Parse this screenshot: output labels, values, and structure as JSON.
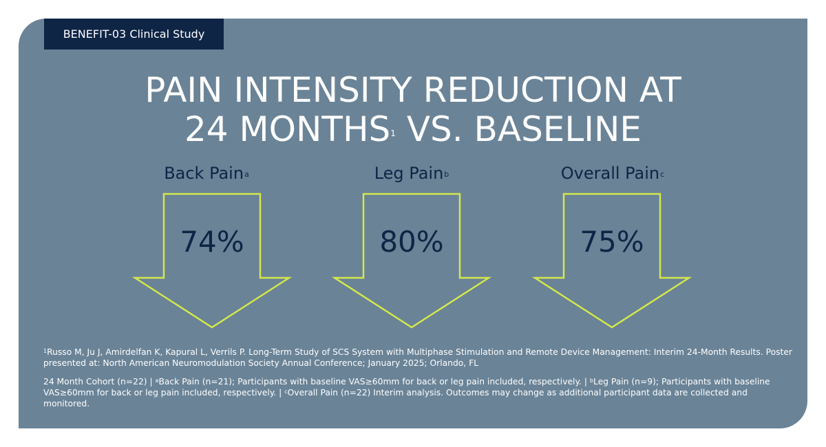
{
  "tag": "BENEFIT-03 Clinical Study",
  "title": {
    "line1": "PAIN INTENSITY REDUCTION AT",
    "line2_part1": "24 MONTHS",
    "line2_sup": "1",
    "line2_part2": " VS. BASELINE"
  },
  "metrics": [
    {
      "label": "Back Pain",
      "sup": "a",
      "value": "74%"
    },
    {
      "label": "Leg Pain",
      "sup": "b",
      "value": "80%"
    },
    {
      "label": "Overall Pain",
      "sup": "c",
      "value": "75%"
    }
  ],
  "footnotes": {
    "ref_sup": "1",
    "ref_text": "Russo M, Ju J, Amirdelfan K, Kapural L, Verrils P. Long-Term Study of SCS System with Multiphase Stimulation and Remote Device Management: Interim 24-Month Results. Poster presented at: North American Neuromodulation Society Annual Conference; January 2025; Orlando, FL",
    "cohort_text": "24 Month Cohort (n=22) | ",
    "a_sup": "a",
    "a_text": "Back Pain (n=21); Participants with baseline VAS≥60mm for back or leg pain included, respectively. | ",
    "b_sup": "b",
    "b_text": "Leg Pain (n=9); Participants with baseline VAS≥60mm for back or leg pain included, respectively. | ",
    "c_sup": "c",
    "c_text": "Overall Pain (n=22) Interim analysis. Outcomes may change as additional participant data are collected and monitored."
  },
  "colors": {
    "card": "#6a8397",
    "tag_bg": "#0f2546",
    "navy_text": "#0f2546",
    "arrow_outline": "#d4e84a",
    "white": "#ffffff"
  }
}
